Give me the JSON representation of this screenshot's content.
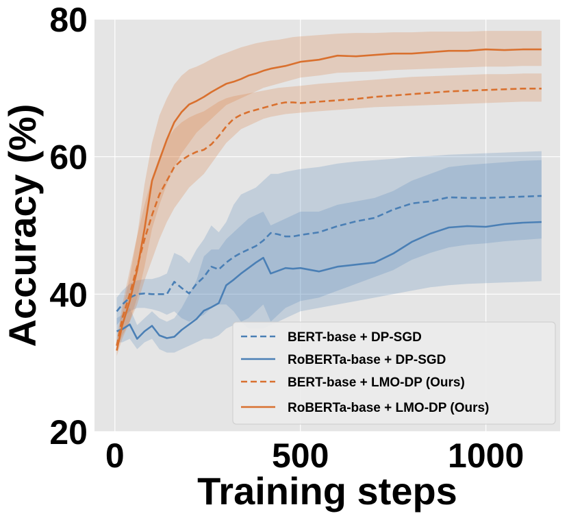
{
  "chart_data": {
    "type": "line",
    "title": "",
    "xlabel": "Training steps",
    "ylabel": "Accuracy (%)",
    "xlim": [
      -55,
      1200
    ],
    "ylim": [
      20,
      80
    ],
    "xticks": [
      0,
      500,
      1000
    ],
    "yticks": [
      20,
      40,
      60,
      80
    ],
    "grid": true,
    "legend_position": "lower-right",
    "colors": {
      "blue": "#4a7fb5",
      "orange": "#d9702e",
      "background": "#e5e5e5",
      "grid": "#ffffff"
    },
    "x": [
      5,
      20,
      40,
      60,
      80,
      100,
      120,
      140,
      160,
      180,
      200,
      220,
      240,
      260,
      280,
      300,
      320,
      340,
      360,
      380,
      400,
      420,
      440,
      460,
      480,
      500,
      550,
      600,
      650,
      700,
      750,
      800,
      850,
      900,
      950,
      1000,
      1050,
      1100,
      1150
    ],
    "series": [
      {
        "name": "BERT-base + DP-SGD",
        "color": "#4a7fb5",
        "style": "dashed",
        "values": [
          37.5,
          38.5,
          39.5,
          40.0,
          40.1,
          40.0,
          40.0,
          40.0,
          41.8,
          40.9,
          40.1,
          41.5,
          42.5,
          44.0,
          43.6,
          44.6,
          45.4,
          46.0,
          46.5,
          47.0,
          47.8,
          48.9,
          48.7,
          48.4,
          48.4,
          48.6,
          49.0,
          49.9,
          50.6,
          51.1,
          52.3,
          53.2,
          53.5,
          54.1,
          54.0,
          54.0,
          54.1,
          54.2,
          54.3
        ],
        "band_lower": [
          35.5,
          36.5,
          37.5,
          38.0,
          38.0,
          37.8,
          37.5,
          37.0,
          37.5,
          36.5,
          36.0,
          36.5,
          37.0,
          38.0,
          38.5,
          38.5,
          37.5,
          36.0,
          35.0,
          35.0,
          35.0,
          35.5,
          36.0,
          36.5,
          37.0,
          37.5,
          38.0,
          38.5,
          39.0,
          39.5,
          40.0,
          40.5,
          41.0,
          41.3,
          41.5,
          41.6,
          41.7,
          41.8,
          41.9
        ],
        "band_upper": [
          39.5,
          40.5,
          41.5,
          42.0,
          42.2,
          42.2,
          42.5,
          43.0,
          46.0,
          45.5,
          44.5,
          46.5,
          48.0,
          50.0,
          49.0,
          50.5,
          53.0,
          54.5,
          55.0,
          55.5,
          56.5,
          57.5,
          57.5,
          57.8,
          58.0,
          58.2,
          58.5,
          59.0,
          59.3,
          59.5,
          59.7,
          60.0,
          60.1,
          60.3,
          60.4,
          60.5,
          60.6,
          60.7,
          60.8
        ]
      },
      {
        "name": "RoBERTa-base + DP-SGD",
        "color": "#4a7fb5",
        "style": "solid",
        "values": [
          34.6,
          34.9,
          35.6,
          33.5,
          34.6,
          35.4,
          34.0,
          33.6,
          33.8,
          34.8,
          35.6,
          36.4,
          37.6,
          38.1,
          38.7,
          41.3,
          42.1,
          43.0,
          43.8,
          44.6,
          45.3,
          43.0,
          43.4,
          43.8,
          43.7,
          43.8,
          43.3,
          44.0,
          44.3,
          44.6,
          45.9,
          47.6,
          48.8,
          49.7,
          49.9,
          49.8,
          50.2,
          50.4,
          50.5
        ],
        "band_lower": [
          33.0,
          33.0,
          33.5,
          32.0,
          33.0,
          33.5,
          32.0,
          31.5,
          31.5,
          32.0,
          32.5,
          33.0,
          33.5,
          33.5,
          34.0,
          35.0,
          35.5,
          36.0,
          36.5,
          37.5,
          38.5,
          36.0,
          37.0,
          38.0,
          38.5,
          39.0,
          39.5,
          40.5,
          41.5,
          42.5,
          43.5,
          45.0,
          46.0,
          46.8,
          47.2,
          47.4,
          47.7,
          47.9,
          48.1
        ],
        "band_upper": [
          36.5,
          37.0,
          38.0,
          35.5,
          36.5,
          37.5,
          36.5,
          36.0,
          36.5,
          38.0,
          40.0,
          42.0,
          45.5,
          46.5,
          46.5,
          48.0,
          49.0,
          50.0,
          51.0,
          51.5,
          52.0,
          50.0,
          50.5,
          51.0,
          51.5,
          52.0,
          52.0,
          53.0,
          53.5,
          54.0,
          55.0,
          56.5,
          57.5,
          58.5,
          58.8,
          59.0,
          59.2,
          59.4,
          59.5
        ]
      },
      {
        "name": "BERT-base + LMO-DP (Ours)",
        "color": "#d9702e",
        "style": "dashed",
        "values": [
          32.5,
          36.5,
          40.0,
          44.0,
          48.0,
          51.5,
          54.5,
          56.5,
          58.5,
          59.5,
          60.2,
          60.7,
          61.0,
          61.8,
          63.0,
          64.4,
          65.5,
          66.1,
          66.5,
          66.8,
          67.1,
          67.4,
          67.7,
          67.9,
          67.9,
          67.8,
          68.0,
          68.2,
          68.4,
          68.7,
          68.9,
          69.1,
          69.3,
          69.5,
          69.6,
          69.7,
          69.8,
          69.9,
          69.9
        ],
        "band_lower": [
          32.0,
          34.0,
          36.0,
          38.5,
          42.0,
          45.0,
          48.0,
          50.5,
          52.5,
          54.0,
          55.5,
          56.5,
          57.5,
          59.0,
          60.5,
          62.0,
          63.0,
          64.0,
          64.5,
          65.0,
          65.5,
          65.8,
          66.0,
          66.2,
          66.3,
          66.4,
          66.6,
          66.8,
          67.0,
          67.2,
          67.3,
          67.4,
          67.5,
          67.6,
          67.7,
          67.8,
          67.9,
          68.0,
          68.0
        ],
        "band_upper": [
          33.5,
          38.5,
          43.5,
          48.5,
          53.0,
          57.0,
          60.0,
          62.5,
          64.0,
          65.0,
          65.7,
          66.2,
          66.6,
          67.3,
          68.0,
          68.5,
          68.8,
          69.0,
          69.2,
          69.4,
          69.6,
          69.8,
          70.0,
          70.1,
          70.2,
          70.3,
          70.6,
          70.8,
          71.0,
          71.2,
          71.4,
          71.6,
          71.7,
          71.8,
          71.9,
          72.0,
          72.0,
          72.1,
          72.1
        ]
      },
      {
        "name": "RoBERTa-base + LMO-DP (Ours)",
        "color": "#d9702e",
        "style": "solid",
        "values": [
          31.8,
          35.5,
          39.0,
          43.5,
          49.5,
          56.5,
          59.5,
          62.5,
          65.0,
          66.5,
          67.6,
          68.1,
          68.7,
          69.4,
          70.0,
          70.6,
          70.9,
          71.3,
          71.8,
          72.1,
          72.5,
          72.8,
          73.0,
          73.2,
          73.5,
          73.8,
          74.1,
          74.7,
          74.6,
          74.8,
          75.0,
          75.0,
          75.2,
          75.4,
          75.4,
          75.6,
          75.5,
          75.6,
          75.6
        ],
        "band_lower": [
          31.0,
          33.5,
          36.0,
          39.5,
          44.0,
          49.5,
          53.0,
          56.0,
          58.5,
          60.5,
          62.0,
          63.5,
          64.5,
          65.5,
          66.5,
          67.5,
          68.0,
          68.5,
          69.0,
          69.5,
          70.0,
          70.3,
          70.6,
          70.9,
          71.2,
          71.5,
          71.8,
          72.2,
          72.3,
          72.4,
          72.6,
          72.7,
          72.8,
          72.9,
          73.0,
          73.1,
          73.1,
          73.2,
          73.2
        ],
        "band_upper": [
          33.0,
          37.5,
          42.5,
          48.5,
          56.0,
          62.0,
          66.0,
          68.5,
          70.5,
          71.8,
          72.7,
          73.1,
          73.6,
          74.2,
          74.7,
          75.1,
          75.5,
          75.9,
          76.2,
          76.5,
          76.7,
          76.9,
          77.0,
          77.2,
          77.4,
          77.5,
          77.7,
          77.9,
          78.0,
          78.0,
          78.1,
          78.1,
          78.2,
          78.2,
          78.2,
          78.3,
          78.3,
          78.3,
          78.3
        ]
      }
    ]
  }
}
